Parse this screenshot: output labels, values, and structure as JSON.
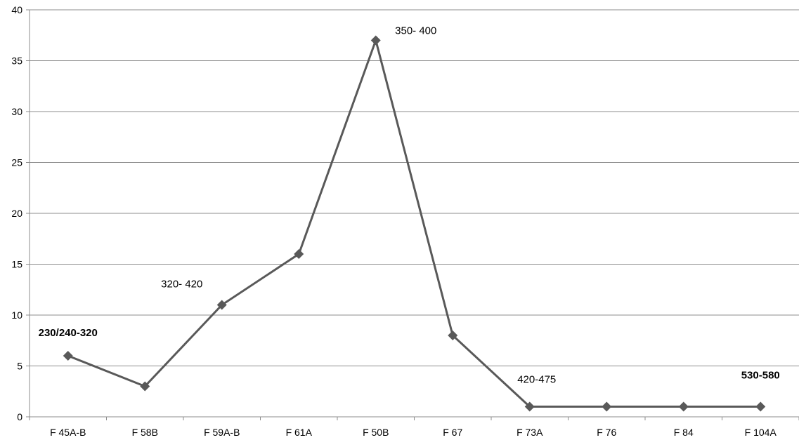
{
  "chart_data": {
    "type": "line",
    "categories": [
      "F 45A-B",
      "F 58B",
      "F 59A-B",
      "F 61A",
      "F 50B",
      "F 67",
      "F 73A",
      "F 76",
      "F 84",
      "F 104A"
    ],
    "series": [
      {
        "values": [
          6,
          3,
          11,
          16,
          37,
          8,
          1,
          1,
          1,
          1
        ]
      }
    ],
    "title": "",
    "xlabel": "",
    "ylabel": "",
    "ylim": [
      0,
      40
    ],
    "yticks": [
      "0",
      "5",
      "10",
      "15",
      "20",
      "25",
      "30",
      "35",
      "40"
    ],
    "grid": true,
    "marker": "diamond",
    "colors": {
      "line": "#595959",
      "marker": "#595959",
      "grid": "#8c8c8c",
      "axis": "#8c8c8c"
    },
    "annotations": [
      {
        "text": "230/240-320",
        "category": "F 45A-B",
        "bold": true
      },
      {
        "text": "320- 420",
        "category": "F 59A-B",
        "bold": false
      },
      {
        "text": "350- 400",
        "category": "F 50B",
        "bold": false
      },
      {
        "text": "420-475",
        "category": "F 73A",
        "bold": false
      },
      {
        "text": "530-580",
        "category": "F 104A",
        "bold": true
      }
    ]
  }
}
